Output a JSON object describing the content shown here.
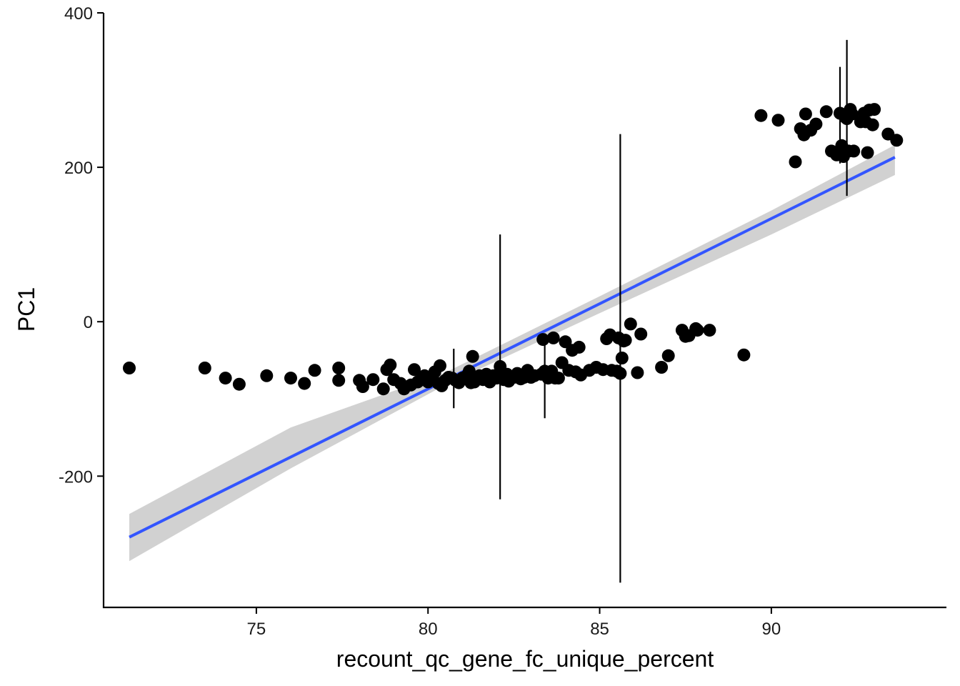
{
  "chart_data": {
    "type": "scatter",
    "xlabel": "recount_qc_gene_fc_unique_percent",
    "ylabel": "PC1",
    "xlim": [
      70.55,
      95.1
    ],
    "ylim": [
      -370,
      400
    ],
    "x_ticks": [
      75,
      80,
      85,
      90
    ],
    "y_ticks": [
      -200,
      0,
      200,
      400
    ],
    "grid": false,
    "legend": "none",
    "colors": {
      "points": "#000000",
      "fit_line": "#3355ff",
      "confidence_band": "#cccccc",
      "error_bars": "#000000"
    },
    "points": [
      [
        71.3,
        -60
      ],
      [
        73.5,
        -60
      ],
      [
        74.1,
        -73
      ],
      [
        74.5,
        -81
      ],
      [
        75.3,
        -70
      ],
      [
        76.0,
        -73
      ],
      [
        76.4,
        -80
      ],
      [
        76.7,
        -63
      ],
      [
        77.4,
        -60
      ],
      [
        77.4,
        -76
      ],
      [
        78.0,
        -76
      ],
      [
        78.1,
        -84
      ],
      [
        78.4,
        -75
      ],
      [
        78.7,
        -87
      ],
      [
        78.8,
        -62
      ],
      [
        78.9,
        -56
      ],
      [
        79.0,
        -75
      ],
      [
        79.2,
        -80
      ],
      [
        79.3,
        -87
      ],
      [
        79.5,
        -82
      ],
      [
        79.6,
        -62
      ],
      [
        79.7,
        -78
      ],
      [
        79.8,
        -75
      ],
      [
        79.9,
        -70
      ],
      [
        80.0,
        -78
      ],
      [
        80.1,
        -72
      ],
      [
        80.2,
        -65
      ],
      [
        80.3,
        -80
      ],
      [
        80.35,
        -57
      ],
      [
        80.4,
        -83
      ],
      [
        80.5,
        -76
      ],
      [
        80.6,
        -72
      ],
      [
        80.7,
        -73
      ],
      [
        80.8,
        -76
      ],
      [
        80.9,
        -79
      ],
      [
        81.0,
        -73
      ],
      [
        81.1,
        -71
      ],
      [
        81.2,
        -64
      ],
      [
        81.25,
        -79
      ],
      [
        81.3,
        -45
      ],
      [
        81.35,
        -78
      ],
      [
        81.5,
        -70
      ],
      [
        81.6,
        -75
      ],
      [
        81.7,
        -68
      ],
      [
        81.8,
        -78
      ],
      [
        81.9,
        -70
      ],
      [
        82.0,
        -73
      ],
      [
        82.1,
        -58
      ],
      [
        82.2,
        -75
      ],
      [
        82.3,
        -68
      ],
      [
        82.35,
        -77
      ],
      [
        82.5,
        -72
      ],
      [
        82.6,
        -67
      ],
      [
        82.7,
        -74
      ],
      [
        82.8,
        -72
      ],
      [
        82.9,
        -63
      ],
      [
        83.0,
        -72
      ],
      [
        83.1,
        -70
      ],
      [
        83.3,
        -68
      ],
      [
        83.35,
        -23
      ],
      [
        83.4,
        -64
      ],
      [
        83.5,
        -73
      ],
      [
        83.6,
        -64
      ],
      [
        83.65,
        -21
      ],
      [
        83.7,
        -73
      ],
      [
        83.8,
        -73
      ],
      [
        83.9,
        -53
      ],
      [
        84.0,
        -26
      ],
      [
        84.1,
        -63
      ],
      [
        84.2,
        -37
      ],
      [
        84.3,
        -65
      ],
      [
        84.4,
        -33
      ],
      [
        84.45,
        -69
      ],
      [
        84.7,
        -63
      ],
      [
        84.9,
        -59
      ],
      [
        85.1,
        -62
      ],
      [
        85.2,
        -22
      ],
      [
        85.3,
        -17
      ],
      [
        85.35,
        -63
      ],
      [
        85.5,
        -64
      ],
      [
        85.55,
        -21
      ],
      [
        85.6,
        -67
      ],
      [
        85.65,
        -47
      ],
      [
        85.7,
        -25
      ],
      [
        85.75,
        -24
      ],
      [
        85.9,
        -3
      ],
      [
        86.1,
        -66
      ],
      [
        86.2,
        -16
      ],
      [
        86.8,
        -59
      ],
      [
        87.0,
        -44
      ],
      [
        87.4,
        -11
      ],
      [
        87.5,
        -19
      ],
      [
        87.6,
        -18
      ],
      [
        87.8,
        -9
      ],
      [
        87.85,
        -11
      ],
      [
        88.2,
        -11
      ],
      [
        89.2,
        -43
      ],
      [
        89.7,
        267
      ],
      [
        90.2,
        261
      ],
      [
        90.7,
        207
      ],
      [
        90.85,
        250
      ],
      [
        90.95,
        242
      ],
      [
        91.0,
        269
      ],
      [
        91.15,
        248
      ],
      [
        91.3,
        256
      ],
      [
        91.6,
        272
      ],
      [
        91.75,
        221
      ],
      [
        91.9,
        216
      ],
      [
        92.0,
        270
      ],
      [
        92.05,
        228
      ],
      [
        92.1,
        214
      ],
      [
        92.15,
        265
      ],
      [
        92.2,
        263
      ],
      [
        92.25,
        221
      ],
      [
        92.3,
        275
      ],
      [
        92.35,
        269
      ],
      [
        92.4,
        221
      ],
      [
        92.6,
        259
      ],
      [
        92.7,
        270
      ],
      [
        92.75,
        259
      ],
      [
        92.8,
        219
      ],
      [
        92.85,
        274
      ],
      [
        92.95,
        255
      ],
      [
        93.0,
        275
      ],
      [
        93.4,
        243
      ],
      [
        93.65,
        235
      ]
    ],
    "error_bars": [
      [
        80.75,
        -112,
        -35
      ],
      [
        82.1,
        -230,
        113
      ],
      [
        83.4,
        -125,
        -15
      ],
      [
        85.6,
        -338,
        243
      ],
      [
        92.0,
        205,
        330
      ],
      [
        92.2,
        163,
        365
      ]
    ],
    "fit_line": {
      "x": [
        71.3,
        93.6
      ],
      "y": [
        -279,
        213
      ]
    },
    "confidence_band": [
      [
        71.3,
        -249,
        -310
      ],
      [
        76.0,
        -137,
        -190
      ],
      [
        80.5,
        -66,
        -82
      ],
      [
        85.0,
        33,
        11
      ],
      [
        90.0,
        144,
        113
      ],
      [
        93.6,
        229,
        190
      ]
    ]
  }
}
